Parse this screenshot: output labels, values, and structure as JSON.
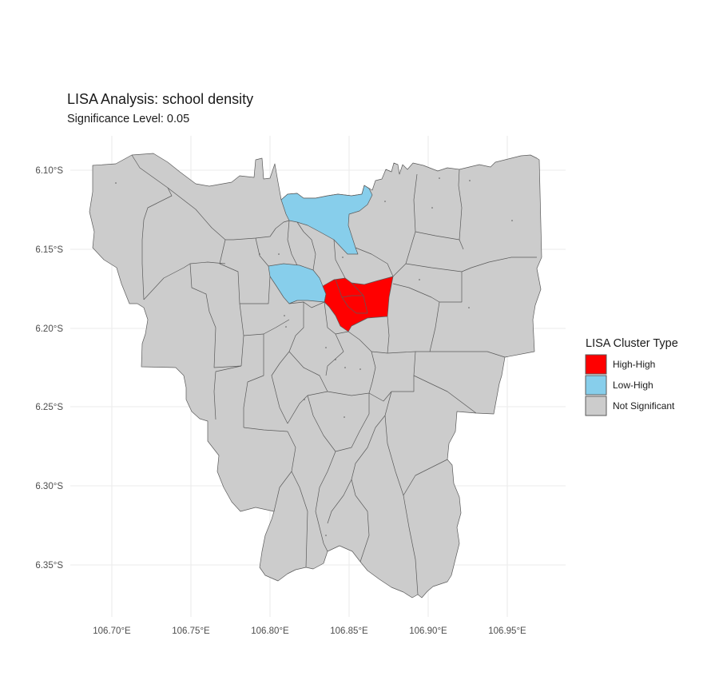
{
  "title": "LISA Analysis: school density",
  "subtitle": "Significance Level: 0.05",
  "axes": {
    "x_ticks": [
      "106.70°E",
      "106.75°E",
      "106.80°E",
      "106.85°E",
      "106.90°E",
      "106.95°E"
    ],
    "y_ticks": [
      "6.10°S",
      "6.15°S",
      "6.20°S",
      "6.25°S",
      "6.30°S",
      "6.35°S"
    ]
  },
  "legend": {
    "title": "LISA Cluster Type",
    "items": [
      {
        "label": "High-High",
        "color": "#ff0000"
      },
      {
        "label": "Low-High",
        "color": "#87ceeb"
      },
      {
        "label": "Not Significant",
        "color": "#cccccc"
      }
    ]
  },
  "colors": {
    "high_high": "#ff0000",
    "low_high": "#87ceeb",
    "not_significant": "#cccccc",
    "border": "#5a5a5a",
    "grid": "#ebebeb"
  }
}
